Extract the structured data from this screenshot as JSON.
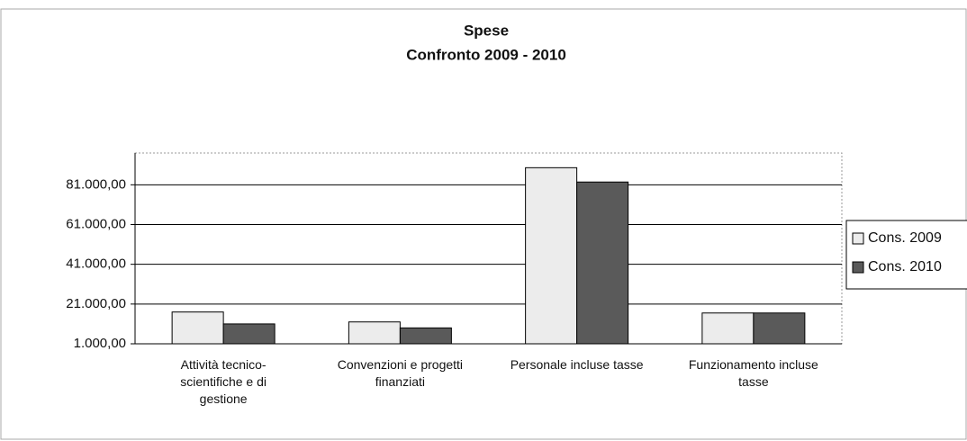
{
  "chart_data": {
    "type": "bar",
    "title": "Spese",
    "subtitle": "Confronto 2009 - 2010",
    "categories": [
      "Attività tecnico-scientifiche e di gestione",
      "Convenzioni e progetti finanziati",
      "Personale incluse tasse",
      "Funzionamento incluse tasse"
    ],
    "series": [
      {
        "name": "Cons. 2009",
        "color": "#ececec",
        "values": [
          17000,
          12000,
          89600,
          16500
        ]
      },
      {
        "name": "Cons. 2010",
        "color": "#5a5a5a",
        "values": [
          11000,
          9000,
          82400,
          16500
        ]
      }
    ],
    "ylim": [
      1000,
      97000
    ],
    "yticks": [
      {
        "value": 1000,
        "label": "1.000,00"
      },
      {
        "value": 21000,
        "label": "21.000,00"
      },
      {
        "value": 41000,
        "label": "41.000,00"
      },
      {
        "value": 61000,
        "label": "61.000,00"
      },
      {
        "value": 81000,
        "label": "81.000,00"
      }
    ],
    "grid": true,
    "legend": "right"
  }
}
